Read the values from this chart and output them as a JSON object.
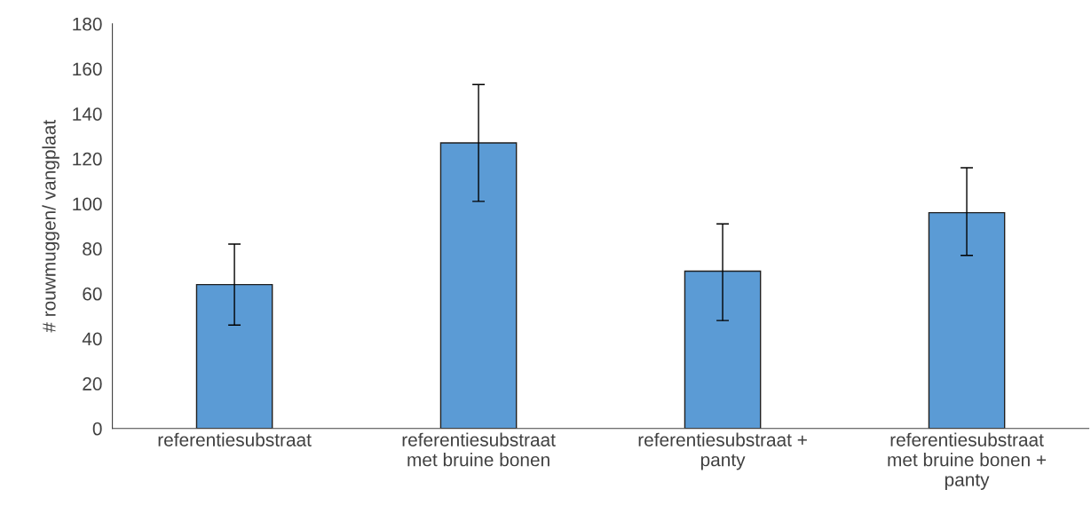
{
  "chart_data": {
    "type": "bar",
    "ylabel": "# rouwmuggen/ vangplaat",
    "categories": [
      "referentiesubstraat",
      "referentiesubstraat\nmet bruine bonen",
      "referentiesubstraat +\npanty",
      "referentiesubstraat\nmet bruine bonen +\npanty"
    ],
    "values": [
      64,
      127,
      70,
      96
    ],
    "errors": [
      [
        46,
        82
      ],
      [
        101,
        153
      ],
      [
        48,
        91
      ],
      [
        77,
        116
      ]
    ],
    "color": "#5b9bd5",
    "ylim": [
      0,
      180
    ],
    "yticks": [
      0,
      20,
      40,
      60,
      80,
      100,
      120,
      140,
      160,
      180
    ],
    "grid": false,
    "legend": false
  }
}
